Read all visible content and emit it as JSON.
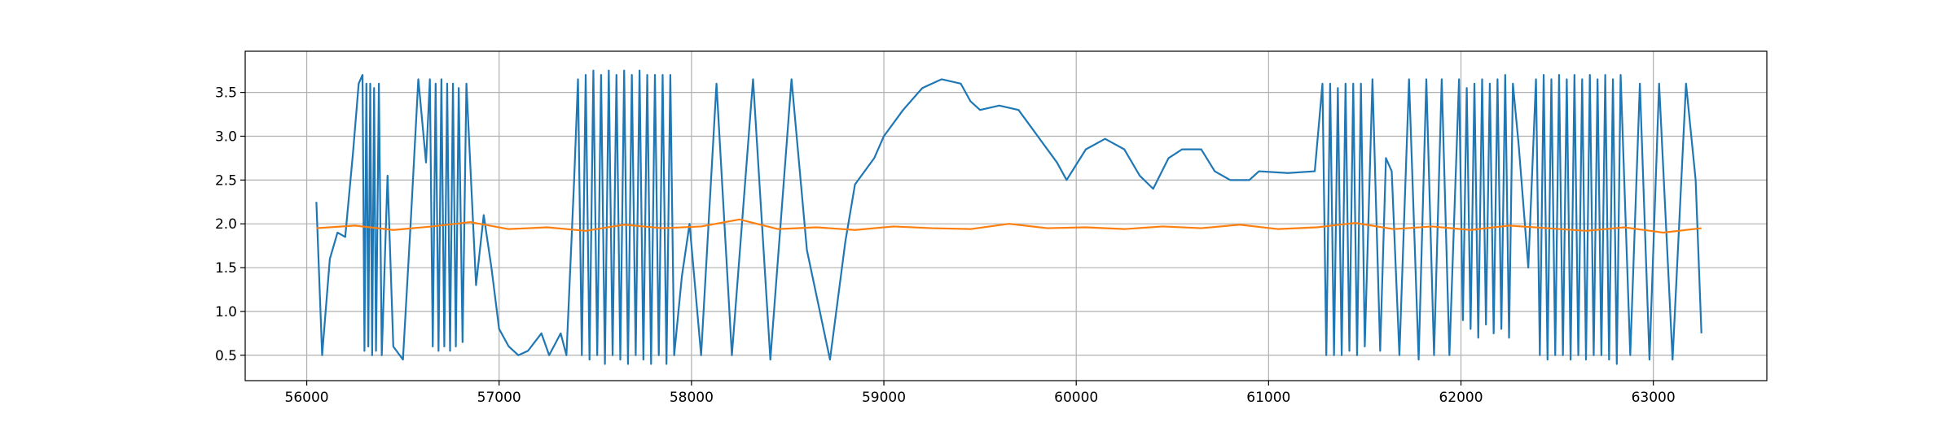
{
  "chart_data": {
    "type": "line",
    "xlim": [
      55680,
      63590
    ],
    "ylim": [
      0.21,
      3.97
    ],
    "xticks": [
      56000,
      57000,
      58000,
      59000,
      60000,
      61000,
      62000,
      63000
    ],
    "yticks": [
      0.5,
      {
        "value": 1,
        "label": "1.0"
      },
      1.5,
      {
        "value": 2,
        "label": "2.0"
      },
      2.5,
      {
        "value": 3,
        "label": "3.0"
      },
      3.5
    ],
    "grid": true,
    "series": [
      {
        "color": "#1f77b4",
        "x": [
          56050,
          56080,
          56120,
          56160,
          56200,
          56240,
          56270,
          56290,
          56300,
          56310,
          56320,
          56330,
          56340,
          56350,
          56360,
          56375,
          56390,
          56420,
          56450,
          56500,
          56540,
          56580,
          56620,
          56640,
          56655,
          56670,
          56685,
          56700,
          56715,
          56730,
          56745,
          56760,
          56775,
          56790,
          56810,
          56830,
          56880,
          56920,
          56960,
          57000,
          57050,
          57100,
          57150,
          57220,
          57260,
          57320,
          57350,
          57390,
          57410,
          57430,
          57450,
          57470,
          57490,
          57510,
          57530,
          57550,
          57570,
          57590,
          57610,
          57630,
          57650,
          57670,
          57690,
          57710,
          57730,
          57750,
          57770,
          57790,
          57810,
          57830,
          57850,
          57870,
          57890,
          57910,
          57950,
          57990,
          58050,
          58130,
          58210,
          58320,
          58410,
          58520,
          58600,
          58720,
          58800,
          58850,
          58950,
          59000,
          59100,
          59200,
          59300,
          59400,
          59450,
          59500,
          59600,
          59700,
          59800,
          59900,
          59950,
          60050,
          60150,
          60250,
          60330,
          60400,
          60480,
          60550,
          60650,
          60720,
          60800,
          60900,
          60950,
          61100,
          61240,
          61280,
          61300,
          61320,
          61340,
          61360,
          61380,
          61400,
          61420,
          61440,
          61460,
          61480,
          61500,
          61540,
          61580,
          61610,
          61640,
          61680,
          61730,
          61780,
          61820,
          61860,
          61900,
          61940,
          61990,
          62010,
          62030,
          62050,
          62070,
          62090,
          62110,
          62130,
          62150,
          62170,
          62190,
          62210,
          62230,
          62250,
          62270,
          62300,
          62350,
          62390,
          62410,
          62430,
          62450,
          62470,
          62490,
          62510,
          62530,
          62550,
          62570,
          62590,
          62610,
          62630,
          62650,
          62670,
          62690,
          62710,
          62730,
          62750,
          62770,
          62790,
          62810,
          62830,
          62880,
          62930,
          62980,
          63030,
          63100,
          63170,
          63220,
          63250
        ],
        "values": [
          2.25,
          0.5,
          1.6,
          1.9,
          1.85,
          2.8,
          3.6,
          3.7,
          0.55,
          3.6,
          0.6,
          3.6,
          0.5,
          3.55,
          0.55,
          3.6,
          0.5,
          2.55,
          0.6,
          0.45,
          2.0,
          3.65,
          2.7,
          3.65,
          0.6,
          3.6,
          0.55,
          3.65,
          0.6,
          3.6,
          0.55,
          3.6,
          0.6,
          3.55,
          0.65,
          3.6,
          1.3,
          2.1,
          1.5,
          0.8,
          0.6,
          0.5,
          0.55,
          0.75,
          0.5,
          0.75,
          0.5,
          2.5,
          3.65,
          0.5,
          3.7,
          0.45,
          3.75,
          0.5,
          3.7,
          0.4,
          3.75,
          0.5,
          3.7,
          0.45,
          3.75,
          0.4,
          3.7,
          0.5,
          3.75,
          0.45,
          3.7,
          0.4,
          3.7,
          0.5,
          3.7,
          0.4,
          3.7,
          0.5,
          1.4,
          2.0,
          0.5,
          3.6,
          0.5,
          3.65,
          0.45,
          3.65,
          1.7,
          0.45,
          1.8,
          2.45,
          2.75,
          3.0,
          3.3,
          3.55,
          3.65,
          3.6,
          3.4,
          3.3,
          3.35,
          3.3,
          3.0,
          2.7,
          2.5,
          2.85,
          2.97,
          2.85,
          2.55,
          2.4,
          2.75,
          2.85,
          2.85,
          2.6,
          2.5,
          2.5,
          2.6,
          2.58,
          2.6,
          3.6,
          0.5,
          3.6,
          0.5,
          3.55,
          0.5,
          3.6,
          0.55,
          3.6,
          0.5,
          3.6,
          0.6,
          3.65,
          0.55,
          2.75,
          2.6,
          0.5,
          3.65,
          0.45,
          3.65,
          0.5,
          3.65,
          0.5,
          3.65,
          0.9,
          3.55,
          0.8,
          3.6,
          0.7,
          3.65,
          0.85,
          3.6,
          0.75,
          3.65,
          0.8,
          3.7,
          0.7,
          3.6,
          2.9,
          1.5,
          3.65,
          0.5,
          3.7,
          0.45,
          3.65,
          0.5,
          3.7,
          0.5,
          3.65,
          0.45,
          3.7,
          0.5,
          3.65,
          0.45,
          3.7,
          0.5,
          3.65,
          0.5,
          3.7,
          0.45,
          3.65,
          0.4,
          3.7,
          0.5,
          3.6,
          0.45,
          3.6,
          0.45,
          3.6,
          2.5,
          0.75
        ]
      },
      {
        "color": "#ff7f0e",
        "x": [
          56050,
          56250,
          56450,
          56650,
          56850,
          57050,
          57250,
          57450,
          57650,
          57850,
          58050,
          58250,
          58450,
          58650,
          58850,
          59050,
          59250,
          59450,
          59650,
          59850,
          60050,
          60250,
          60450,
          60650,
          60850,
          61050,
          61250,
          61450,
          61650,
          61850,
          62050,
          62250,
          62450,
          62650,
          62850,
          63050,
          63250
        ],
        "values": [
          1.95,
          1.98,
          1.93,
          1.97,
          2.02,
          1.94,
          1.96,
          1.92,
          1.99,
          1.95,
          1.97,
          2.05,
          1.94,
          1.96,
          1.93,
          1.97,
          1.95,
          1.94,
          2.0,
          1.95,
          1.96,
          1.94,
          1.97,
          1.95,
          1.99,
          1.94,
          1.96,
          2.01,
          1.94,
          1.97,
          1.93,
          1.98,
          1.95,
          1.92,
          1.96,
          1.9,
          1.95
        ]
      }
    ]
  }
}
